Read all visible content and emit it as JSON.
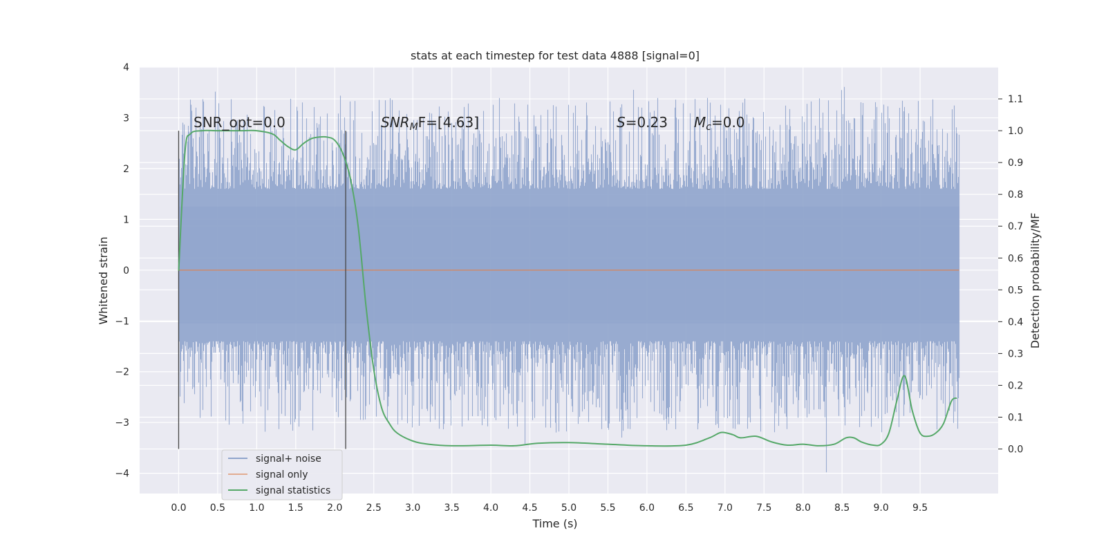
{
  "chart_data": {
    "type": "line",
    "title": "stats at each timestep for test data 4888 [signal=0]",
    "xlabel": "Time (s)",
    "ylabel": "Whitened strain",
    "y2label": "Detection probability/MF",
    "xlim": [
      -0.5,
      10.5
    ],
    "ylim": [
      -4.4,
      4.0
    ],
    "y2lim": [
      -0.14,
      1.2
    ],
    "x_ticks": [
      "0.0",
      "0.5",
      "1.0",
      "1.5",
      "2.0",
      "2.5",
      "3.0",
      "3.5",
      "4.0",
      "4.5",
      "5.0",
      "5.5",
      "6.0",
      "6.5",
      "7.0",
      "7.5",
      "8.0",
      "8.5",
      "9.0",
      "9.5"
    ],
    "y_ticks": [
      "4",
      "3",
      "2",
      "1",
      "0",
      "−1",
      "−2",
      "−3",
      "−4"
    ],
    "y2_ticks": [
      "1.1",
      "1.0",
      "0.9",
      "0.8",
      "0.7",
      "0.6",
      "0.5",
      "0.4",
      "0.3",
      "0.2",
      "0.1",
      "0.0"
    ],
    "grid": true,
    "legend": {
      "placement": "lower-left",
      "entries": [
        "signal+ noise",
        "signal only",
        "signal statistics"
      ]
    },
    "colors": {
      "noise": "#8fa4cc",
      "signal_only": "#dd8452",
      "statistics": "#55a868",
      "background": "#eaeaf2",
      "vline": "#444444"
    },
    "annotations": {
      "snr_opt": "SNR_opt=0.0",
      "snr_mf_sym": "SNR",
      "snr_mf_sub": "M",
      "snr_mf_rest": "F=[4.63]",
      "s_sym": "S",
      "s_rest": "=0.23",
      "mc_sym": "M",
      "mc_sub": "c",
      "mc_rest": "=0.0"
    },
    "vertical_lines_x": [
      0.0,
      2.14
    ],
    "noise_envelope": {
      "x_range": [
        0.0,
        10.0
      ],
      "dense_band": [
        -1.4,
        1.6
      ],
      "typical_extremes": [
        -3.2,
        3.4
      ],
      "max": 3.63,
      "min": -4.05
    },
    "signal_only": {
      "x": [
        0.0,
        10.0
      ],
      "y": [
        0.0,
        0.0
      ]
    },
    "statistics_series": {
      "name": "signal statistics",
      "x": [
        0.0,
        0.08,
        0.15,
        0.3,
        0.5,
        0.8,
        1.0,
        1.2,
        1.3,
        1.4,
        1.5,
        1.6,
        1.7,
        1.8,
        1.9,
        2.0,
        2.1,
        2.2,
        2.3,
        2.4,
        2.5,
        2.6,
        2.7,
        2.8,
        3.0,
        3.2,
        3.5,
        4.0,
        4.3,
        4.6,
        5.0,
        5.5,
        6.0,
        6.5,
        6.8,
        6.95,
        7.1,
        7.2,
        7.4,
        7.6,
        7.8,
        8.0,
        8.2,
        8.4,
        8.55,
        8.65,
        8.75,
        8.9,
        9.0,
        9.1,
        9.2,
        9.3,
        9.4,
        9.5,
        9.6,
        9.7,
        9.8,
        9.9,
        9.97
      ],
      "y": [
        0.56,
        0.93,
        0.99,
        1.0,
        1.0,
        1.0,
        1.0,
        0.99,
        0.97,
        0.95,
        0.94,
        0.96,
        0.975,
        0.98,
        0.98,
        0.97,
        0.93,
        0.85,
        0.7,
        0.45,
        0.25,
        0.13,
        0.08,
        0.05,
        0.025,
        0.015,
        0.01,
        0.012,
        0.01,
        0.018,
        0.02,
        0.015,
        0.01,
        0.012,
        0.035,
        0.052,
        0.045,
        0.035,
        0.04,
        0.022,
        0.012,
        0.015,
        0.01,
        0.015,
        0.035,
        0.035,
        0.022,
        0.012,
        0.015,
        0.05,
        0.15,
        0.23,
        0.12,
        0.05,
        0.04,
        0.05,
        0.08,
        0.15,
        0.16
      ]
    }
  }
}
